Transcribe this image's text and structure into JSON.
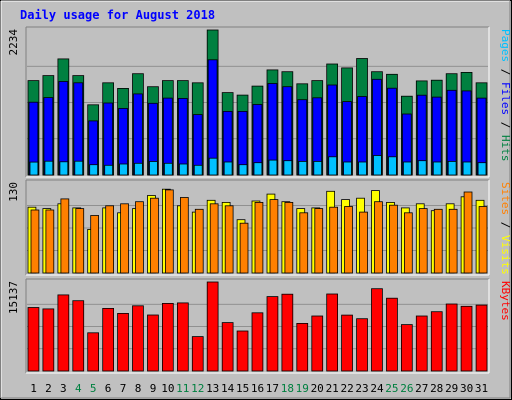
{
  "title": "Daily usage for August 2018",
  "colors": {
    "background": "#c0c0c0",
    "title": "#0000ff",
    "hits": "#008040",
    "files": "#0000ff",
    "pages": "#00c0ff",
    "visits": "#ffff00",
    "sites": "#ff8000",
    "kbytes": "#ff0000",
    "weekend_label": "#008040",
    "weekday_label": "#000000"
  },
  "chart_data": [
    {
      "type": "bar",
      "panel": "hits",
      "ymax_label": "2234",
      "ylim": [
        0,
        2234
      ],
      "right_label_parts": [
        {
          "text": "Pages",
          "color_key": "pages"
        },
        {
          "text": " / ",
          "color_key": "weekday_label"
        },
        {
          "text": "Files",
          "color_key": "files"
        },
        {
          "text": " / ",
          "color_key": "weekday_label"
        },
        {
          "text": "Hits",
          "color_key": "hits"
        }
      ],
      "categories": [
        "1",
        "2",
        "3",
        "4",
        "5",
        "6",
        "7",
        "8",
        "9",
        "10",
        "11",
        "12",
        "13",
        "14",
        "15",
        "16",
        "17",
        "18",
        "19",
        "20",
        "21",
        "22",
        "23",
        "24",
        "25",
        "26",
        "27",
        "28",
        "29",
        "30",
        "31"
      ],
      "series": [
        {
          "name": "Hits",
          "color_key": "hits",
          "values": [
            1455,
            1531,
            1788,
            1531,
            1081,
            1421,
            1335,
            1560,
            1361,
            1455,
            1455,
            1420,
            2234,
            1269,
            1231,
            1370,
            1620,
            1591,
            1405,
            1455,
            1710,
            1650,
            1795,
            1591,
            1551,
            1214,
            1450,
            1460,
            1560,
            1580,
            1420
          ]
        },
        {
          "name": "Files",
          "color_key": "files",
          "values": [
            1121,
            1192,
            1440,
            1421,
            834,
            1110,
            1026,
            1250,
            1105,
            1185,
            1180,
            930,
            1775,
            980,
            980,
            1086,
            1410,
            1360,
            1160,
            1190,
            1387,
            1131,
            1210,
            1474,
            1337,
            940,
            1230,
            1200,
            1305,
            1295,
            1185
          ]
        },
        {
          "name": "Pages",
          "color_key": "pages",
          "values": [
            199,
            213,
            203,
            213,
            159,
            149,
            169,
            180,
            208,
            180,
            170,
            150,
            259,
            200,
            159,
            190,
            230,
            220,
            210,
            210,
            280,
            200,
            200,
            300,
            280,
            200,
            220,
            200,
            210,
            200,
            190
          ]
        }
      ]
    },
    {
      "type": "bar",
      "panel": "visits",
      "ymax_label": "130",
      "ylim": [
        0,
        130
      ],
      "right_label_parts": [
        {
          "text": "Sites",
          "color_key": "sites"
        },
        {
          "text": " / ",
          "color_key": "weekday_label"
        },
        {
          "text": "Visits",
          "color_key": "visits"
        }
      ],
      "categories": [
        "1",
        "2",
        "3",
        "4",
        "5",
        "6",
        "7",
        "8",
        "9",
        "10",
        "11",
        "12",
        "13",
        "14",
        "15",
        "16",
        "17",
        "18",
        "19",
        "20",
        "21",
        "22",
        "23",
        "24",
        "25",
        "26",
        "27",
        "28",
        "29",
        "30",
        "31"
      ],
      "series": [
        {
          "name": "Visits",
          "color_key": "visits",
          "values": [
            95,
            93,
            100,
            94,
            63,
            94,
            87,
            93,
            112,
            121,
            97,
            88,
            105,
            102,
            77,
            104,
            114,
            103,
            93,
            94,
            118,
            106,
            108,
            119,
            102,
            94,
            100,
            90,
            100,
            110,
            105
          ]
        },
        {
          "name": "Sites",
          "color_key": "sites",
          "values": [
            91,
            91,
            107,
            93,
            83,
            97,
            100,
            103,
            108,
            120,
            109,
            92,
            100,
            97,
            72,
            102,
            106,
            102,
            87,
            93,
            95,
            96,
            88,
            103,
            98,
            87,
            93,
            92,
            92,
            117,
            96
          ]
        }
      ]
    },
    {
      "type": "bar",
      "panel": "kbytes",
      "ymax_label": "15137",
      "ylim": [
        0,
        15137
      ],
      "right_label_parts": [
        {
          "text": "KBytes",
          "color_key": "kbytes"
        }
      ],
      "categories": [
        "1",
        "2",
        "3",
        "4",
        "5",
        "6",
        "7",
        "8",
        "9",
        "10",
        "11",
        "12",
        "13",
        "14",
        "15",
        "16",
        "17",
        "18",
        "19",
        "20",
        "21",
        "22",
        "23",
        "24",
        "25",
        "26",
        "27",
        "28",
        "29",
        "30",
        "31"
      ],
      "series": [
        {
          "name": "KBytes",
          "color_key": "kbytes",
          "values": [
            10800,
            10560,
            12950,
            11950,
            6500,
            10650,
            9800,
            11090,
            9530,
            11490,
            11590,
            5850,
            15137,
            8230,
            6800,
            9900,
            12650,
            13060,
            8100,
            9350,
            13090,
            9500,
            8900,
            14000,
            12390,
            7900,
            9350,
            10090,
            11400,
            11000,
            11200
          ]
        }
      ]
    }
  ],
  "x_labels": [
    {
      "text": "1",
      "weekend": false
    },
    {
      "text": "2",
      "weekend": false
    },
    {
      "text": "3",
      "weekend": false
    },
    {
      "text": "4",
      "weekend": true
    },
    {
      "text": "5",
      "weekend": true
    },
    {
      "text": "6",
      "weekend": false
    },
    {
      "text": "7",
      "weekend": false
    },
    {
      "text": "8",
      "weekend": false
    },
    {
      "text": "9",
      "weekend": false
    },
    {
      "text": "10",
      "weekend": false
    },
    {
      "text": "11",
      "weekend": true
    },
    {
      "text": "12",
      "weekend": true
    },
    {
      "text": "13",
      "weekend": false
    },
    {
      "text": "14",
      "weekend": false
    },
    {
      "text": "15",
      "weekend": false
    },
    {
      "text": "16",
      "weekend": false
    },
    {
      "text": "17",
      "weekend": false
    },
    {
      "text": "18",
      "weekend": true
    },
    {
      "text": "19",
      "weekend": true
    },
    {
      "text": "20",
      "weekend": false
    },
    {
      "text": "21",
      "weekend": false
    },
    {
      "text": "22",
      "weekend": false
    },
    {
      "text": "23",
      "weekend": false
    },
    {
      "text": "24",
      "weekend": false
    },
    {
      "text": "25",
      "weekend": true
    },
    {
      "text": "26",
      "weekend": true
    },
    {
      "text": "27",
      "weekend": false
    },
    {
      "text": "28",
      "weekend": false
    },
    {
      "text": "29",
      "weekend": false
    },
    {
      "text": "30",
      "weekend": false
    },
    {
      "text": "31",
      "weekend": false
    }
  ]
}
